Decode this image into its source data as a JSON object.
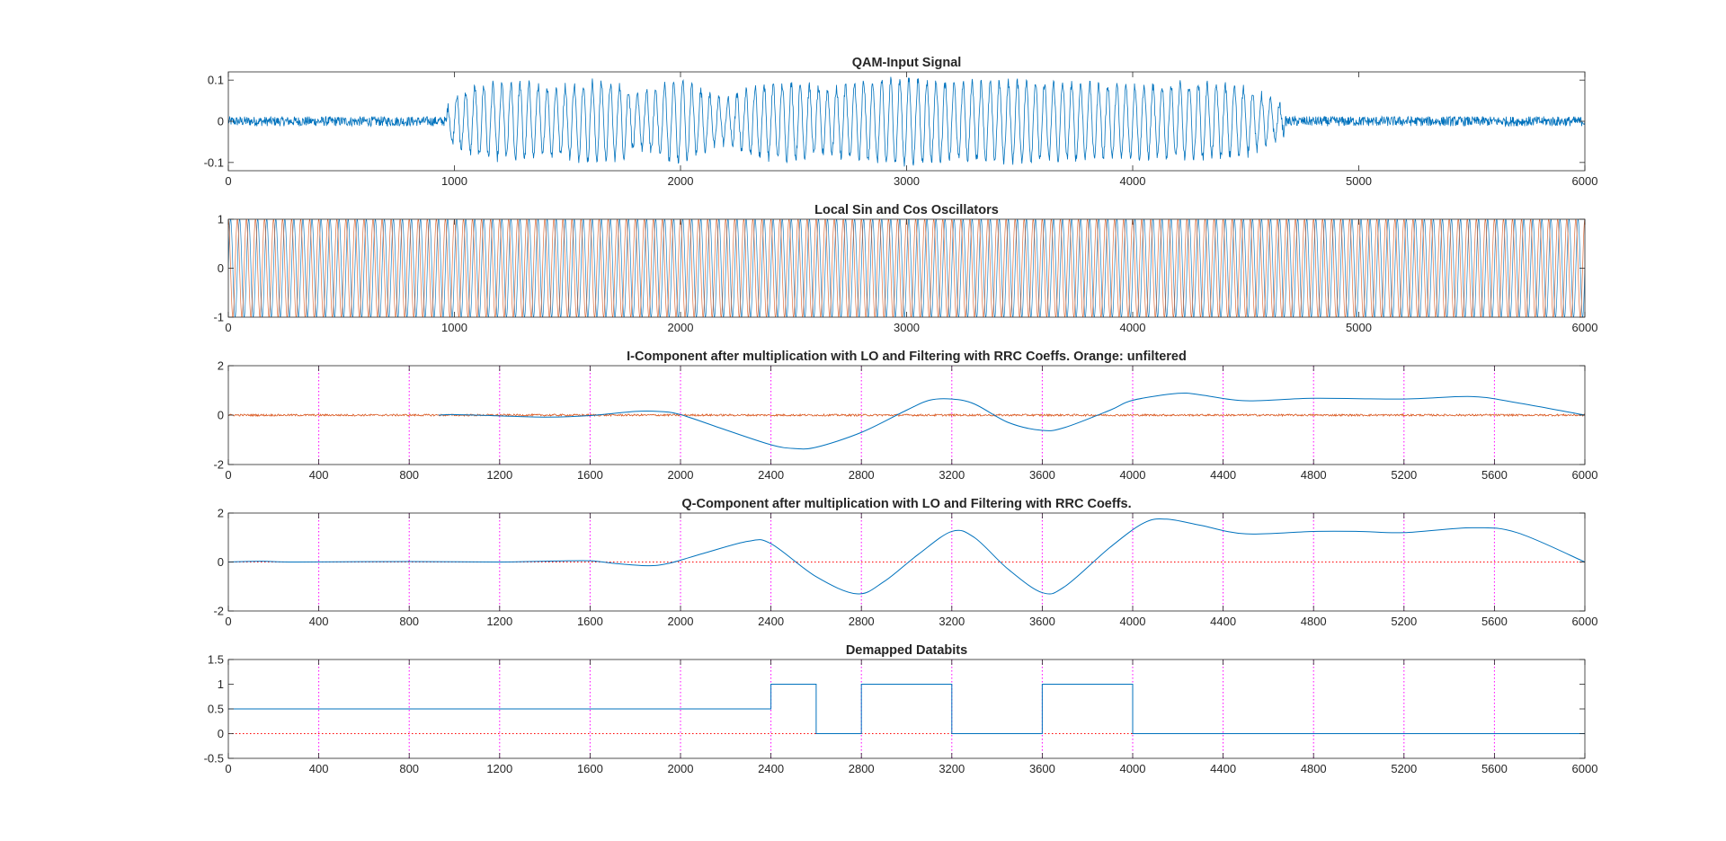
{
  "figure": {
    "background": "#ffffff",
    "axes_color": "#262626",
    "series_colors": {
      "blue": "#0072BD",
      "orange": "#D95319",
      "magenta": "#FF00FF",
      "red": "#FF0000"
    }
  },
  "chart_data": [
    {
      "type": "line",
      "title": "QAM-Input Signal",
      "xlim": [
        0,
        6000
      ],
      "ylim": [
        -0.12,
        0.12
      ],
      "xticks": [
        0,
        1000,
        2000,
        3000,
        4000,
        5000,
        6000
      ],
      "xtick_labels": [
        "0",
        "1000",
        "2000",
        "3000",
        "4000",
        "5000",
        "6000"
      ],
      "yticks": [
        -0.1,
        0,
        0.1
      ],
      "ytick_labels": [
        "-0.1",
        "0",
        "0.1"
      ],
      "grid": "off",
      "series": [
        {
          "kind": "modulated-noise",
          "color": "#0072BD",
          "noise_amplitude": 0.012,
          "carrier_period": 40,
          "envelope": [
            [
              0,
              0.015
            ],
            [
              950,
              0.015
            ],
            [
              1000,
              0.06
            ],
            [
              1100,
              0.085
            ],
            [
              1300,
              0.09
            ],
            [
              1450,
              0.08
            ],
            [
              1600,
              0.095
            ],
            [
              1750,
              0.085
            ],
            [
              1800,
              0.06
            ],
            [
              1850,
              0.07
            ],
            [
              2000,
              0.1
            ],
            [
              2100,
              0.07
            ],
            [
              2200,
              0.05
            ],
            [
              2350,
              0.085
            ],
            [
              2500,
              0.09
            ],
            [
              2650,
              0.075
            ],
            [
              2800,
              0.095
            ],
            [
              3000,
              0.1
            ],
            [
              3200,
              0.09
            ],
            [
              3500,
              0.095
            ],
            [
              3800,
              0.09
            ],
            [
              4100,
              0.085
            ],
            [
              4300,
              0.09
            ],
            [
              4500,
              0.08
            ],
            [
              4600,
              0.055
            ],
            [
              4700,
              0.02
            ],
            [
              6000,
              0.015
            ]
          ]
        }
      ]
    },
    {
      "type": "line",
      "title": "Local Sin and Cos Oscillators",
      "xlim": [
        0,
        6000
      ],
      "ylim": [
        -1,
        1
      ],
      "xticks": [
        0,
        1000,
        2000,
        3000,
        4000,
        5000,
        6000
      ],
      "xtick_labels": [
        "0",
        "1000",
        "2000",
        "3000",
        "4000",
        "5000",
        "6000"
      ],
      "yticks": [
        -1,
        0,
        1
      ],
      "ytick_labels": [
        "-1",
        "0",
        "1"
      ],
      "grid": "off",
      "series": [
        {
          "kind": "oscillator",
          "phase": "sin",
          "color": "#0072BD",
          "amplitude": 1,
          "period": 40
        },
        {
          "kind": "oscillator",
          "phase": "cos",
          "color": "#D95319",
          "amplitude": 1,
          "period": 40
        }
      ]
    },
    {
      "type": "line",
      "title": "I-Component after multiplication with LO and Filtering with RRC Coeffs. Orange: unfiltered",
      "xlim": [
        0,
        6000
      ],
      "ylim": [
        -2,
        2
      ],
      "xticks": [
        0,
        400,
        800,
        1200,
        1600,
        2000,
        2400,
        2800,
        3200,
        3600,
        4000,
        4400,
        4800,
        5200,
        5600,
        6000
      ],
      "xtick_labels": [
        "0",
        "400",
        "800",
        "1200",
        "1600",
        "2000",
        "2400",
        "2800",
        "3200",
        "3600",
        "4000",
        "4400",
        "4800",
        "5200",
        "5600",
        "6000"
      ],
      "yticks": [
        -2,
        0,
        2
      ],
      "ytick_labels": [
        "-2",
        "0",
        "2"
      ],
      "vlines": {
        "x": [
          400,
          800,
          1200,
          1600,
          2000,
          2400,
          2800,
          3200,
          3600,
          4000,
          4400,
          4800,
          5200,
          5600
        ],
        "color": "#FF00FF",
        "style": "dotted"
      },
      "series": [
        {
          "kind": "noise",
          "color": "#D95319",
          "x_start": 0,
          "x_end": 6000,
          "amplitude": 0.04
        },
        {
          "kind": "curve",
          "color": "#0072BD",
          "points": [
            [
              930,
              0
            ],
            [
              1000,
              0.02
            ],
            [
              1200,
              -0.03
            ],
            [
              1400,
              -0.08
            ],
            [
              1600,
              -0.02
            ],
            [
              1800,
              0.15
            ],
            [
              1900,
              0.15
            ],
            [
              2000,
              0.02
            ],
            [
              2200,
              -0.6
            ],
            [
              2400,
              -1.2
            ],
            [
              2500,
              -1.35
            ],
            [
              2600,
              -1.3
            ],
            [
              2800,
              -0.7
            ],
            [
              3000,
              0.2
            ],
            [
              3100,
              0.6
            ],
            [
              3200,
              0.65
            ],
            [
              3300,
              0.45
            ],
            [
              3450,
              -0.3
            ],
            [
              3600,
              -0.62
            ],
            [
              3700,
              -0.5
            ],
            [
              3900,
              0.2
            ],
            [
              4000,
              0.6
            ],
            [
              4200,
              0.88
            ],
            [
              4300,
              0.82
            ],
            [
              4500,
              0.58
            ],
            [
              4800,
              0.68
            ],
            [
              5200,
              0.65
            ],
            [
              5500,
              0.75
            ],
            [
              5700,
              0.5
            ],
            [
              6000,
              0
            ]
          ]
        }
      ]
    },
    {
      "type": "line",
      "title": "Q-Component after multiplication with LO and Filtering with RRC Coeffs.",
      "xlim": [
        0,
        6000
      ],
      "ylim": [
        -2,
        2
      ],
      "xticks": [
        0,
        400,
        800,
        1200,
        1600,
        2000,
        2400,
        2800,
        3200,
        3600,
        4000,
        4400,
        4800,
        5200,
        5600,
        6000
      ],
      "xtick_labels": [
        "0",
        "400",
        "800",
        "1200",
        "1600",
        "2000",
        "2400",
        "2800",
        "3200",
        "3600",
        "4000",
        "4400",
        "4800",
        "5200",
        "5600",
        "6000"
      ],
      "yticks": [
        -2,
        0,
        2
      ],
      "ytick_labels": [
        "-2",
        "0",
        "2"
      ],
      "vlines": {
        "x": [
          400,
          800,
          1200,
          1600,
          2000,
          2400,
          2800,
          3200,
          3600,
          4000,
          4400,
          4800,
          5200,
          5600
        ],
        "color": "#FF00FF",
        "style": "dotted"
      },
      "hlines": {
        "y": [
          0
        ],
        "color": "#FF0000",
        "style": "dotted"
      },
      "series": [
        {
          "kind": "curve",
          "color": "#0072BD",
          "points": [
            [
              0,
              0
            ],
            [
              150,
              0.03
            ],
            [
              300,
              0
            ],
            [
              800,
              0.02
            ],
            [
              1200,
              0.0
            ],
            [
              1450,
              0.04
            ],
            [
              1600,
              0.05
            ],
            [
              1700,
              -0.05
            ],
            [
              1850,
              -0.15
            ],
            [
              1950,
              -0.05
            ],
            [
              2100,
              0.35
            ],
            [
              2300,
              0.85
            ],
            [
              2400,
              0.75
            ],
            [
              2600,
              -0.6
            ],
            [
              2780,
              -1.3
            ],
            [
              2900,
              -0.8
            ],
            [
              3050,
              0.3
            ],
            [
              3200,
              1.25
            ],
            [
              3300,
              1.0
            ],
            [
              3450,
              -0.3
            ],
            [
              3600,
              -1.25
            ],
            [
              3700,
              -1.0
            ],
            [
              3900,
              0.6
            ],
            [
              4050,
              1.6
            ],
            [
              4150,
              1.75
            ],
            [
              4300,
              1.5
            ],
            [
              4500,
              1.15
            ],
            [
              4800,
              1.25
            ],
            [
              5000,
              1.25
            ],
            [
              5200,
              1.2
            ],
            [
              5500,
              1.4
            ],
            [
              5700,
              1.2
            ],
            [
              6000,
              0
            ]
          ]
        }
      ]
    },
    {
      "type": "line",
      "title": "Demapped Databits",
      "xlim": [
        0,
        6000
      ],
      "ylim": [
        -0.5,
        1.5
      ],
      "xticks": [
        0,
        400,
        800,
        1200,
        1600,
        2000,
        2400,
        2800,
        3200,
        3600,
        4000,
        4400,
        4800,
        5200,
        5600,
        6000
      ],
      "xtick_labels": [
        "0",
        "400",
        "800",
        "1200",
        "1600",
        "2000",
        "2400",
        "2800",
        "3200",
        "3600",
        "4000",
        "4400",
        "4800",
        "5200",
        "5600",
        "6000"
      ],
      "yticks": [
        -0.5,
        0,
        0.5,
        1,
        1.5
      ],
      "ytick_labels": [
        "-0.5",
        "0",
        "0.5",
        "1",
        "1.5"
      ],
      "vlines": {
        "x": [
          400,
          800,
          1200,
          1600,
          2000,
          2400,
          2800,
          3200,
          3600,
          4000,
          4400,
          4800,
          5200,
          5600
        ],
        "color": "#FF00FF",
        "style": "dotted"
      },
      "hlines": {
        "y": [
          0
        ],
        "color": "#FF0000",
        "style": "dotted"
      },
      "series": [
        {
          "kind": "step",
          "color": "#0072BD",
          "points": [
            [
              0,
              0.5
            ],
            [
              2400,
              0.5
            ],
            [
              2400,
              1
            ],
            [
              2600,
              1
            ],
            [
              2600,
              0
            ],
            [
              2800,
              0
            ],
            [
              2800,
              1
            ],
            [
              3200,
              1
            ],
            [
              3200,
              0
            ],
            [
              3600,
              0
            ],
            [
              3600,
              1
            ],
            [
              4000,
              1
            ],
            [
              4000,
              0
            ],
            [
              6000,
              0
            ]
          ]
        }
      ]
    }
  ]
}
